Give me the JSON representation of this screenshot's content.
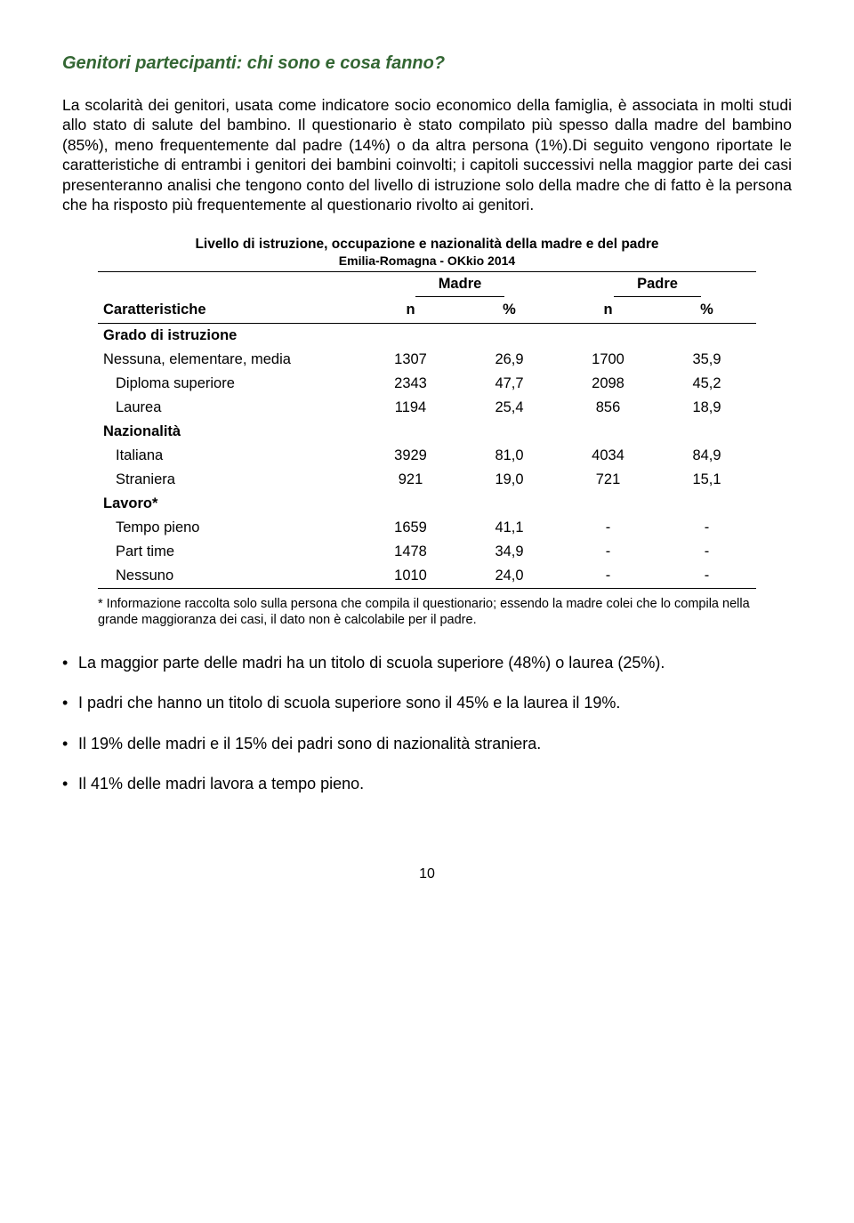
{
  "title": "Genitori partecipanti: chi sono e cosa fanno?",
  "paragraph": "La scolarità dei genitori, usata come indicatore socio economico della famiglia, è associata in molti studi allo stato di salute del bambino. Il questionario è stato compilato più spesso dalla madre del bambino (85%), meno frequentemente dal padre (14%) o da altra persona (1%).Di seguito vengono riportate le caratteristiche di entrambi i genitori dei bambini coinvolti; i capitoli successivi nella maggior parte dei casi presenteranno analisi che tengono conto del livello di istruzione solo della madre che di fatto è la persona che ha risposto più frequentemente al questionario rivolto ai genitori.",
  "table": {
    "title": "Livello di istruzione, occupazione e nazionalità della madre e del padre",
    "subtitle": "Emilia-Romagna - OKkio 2014",
    "group_headers": [
      "Madre",
      "Padre"
    ],
    "sub_headers": [
      "Caratteristiche",
      "n",
      "%",
      "n",
      "%"
    ],
    "sections": [
      {
        "label": "Grado di istruzione",
        "rows": [
          {
            "label": "Nessuna, elementare, media",
            "indent": false,
            "m_n": "1307",
            "m_p": "26,9",
            "p_n": "1700",
            "p_p": "35,9"
          },
          {
            "label": "Diploma superiore",
            "indent": true,
            "m_n": "2343",
            "m_p": "47,7",
            "p_n": "2098",
            "p_p": "45,2"
          },
          {
            "label": "Laurea",
            "indent": true,
            "m_n": "1194",
            "m_p": "25,4",
            "p_n": "856",
            "p_p": "18,9"
          }
        ]
      },
      {
        "label": "Nazionalità",
        "rows": [
          {
            "label": "Italiana",
            "indent": true,
            "m_n": "3929",
            "m_p": "81,0",
            "p_n": "4034",
            "p_p": "84,9"
          },
          {
            "label": "Straniera",
            "indent": true,
            "m_n": "921",
            "m_p": "19,0",
            "p_n": "721",
            "p_p": "15,1"
          }
        ]
      },
      {
        "label": "Lavoro*",
        "rows": [
          {
            "label": "Tempo pieno",
            "indent": true,
            "m_n": "1659",
            "m_p": "41,1",
            "p_n": "-",
            "p_p": "-"
          },
          {
            "label": "Part time",
            "indent": true,
            "m_n": "1478",
            "m_p": "34,9",
            "p_n": "-",
            "p_p": "-"
          },
          {
            "label": "Nessuno",
            "indent": true,
            "m_n": "1010",
            "m_p": "24,0",
            "p_n": "-",
            "p_p": "-"
          }
        ]
      }
    ]
  },
  "footnote": "* Informazione raccolta solo sulla persona che compila il questionario; essendo la madre colei che lo compila nella grande maggioranza dei casi, il dato non è calcolabile per il padre.",
  "bullets": [
    "La maggior parte delle madri ha un titolo di scuola superiore (48%) o laurea (25%).",
    "I padri che hanno un titolo di scuola superiore sono il 45% e la laurea il 19%.",
    "Il 19% delle madri e il 15% dei padri sono di nazionalità straniera.",
    "Il 41% delle madri lavora a tempo pieno."
  ],
  "page_number": "10"
}
